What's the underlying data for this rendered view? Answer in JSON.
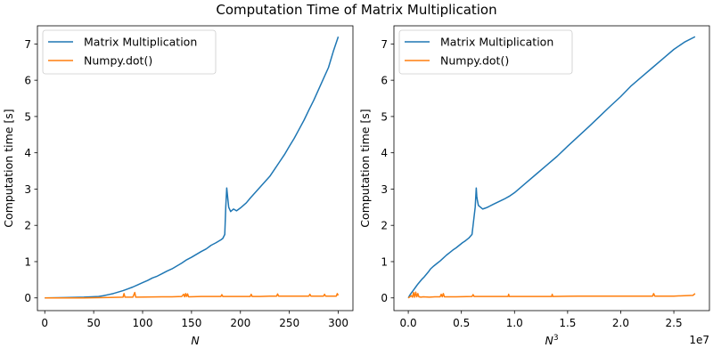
{
  "figure": {
    "title": "Computation Time of Matrix Multiplication"
  },
  "chart_data": [
    {
      "type": "line",
      "xlabel": "N",
      "ylabel": "Computation time [s]",
      "xlim": [
        -7.5,
        315
      ],
      "ylim": [
        -0.35,
        7.5
      ],
      "xticks": [
        0,
        50,
        100,
        150,
        200,
        250,
        300
      ],
      "yticks": [
        0,
        1,
        2,
        3,
        4,
        5,
        6,
        7
      ],
      "offset_text": "",
      "legend": "upper left",
      "grid": false,
      "series": [
        {
          "name": "Matrix Multiplication",
          "color": "#1f77b4",
          "x": [
            0,
            20,
            40,
            55,
            60,
            65,
            70,
            75,
            80,
            85,
            90,
            95,
            100,
            105,
            110,
            115,
            120,
            125,
            130,
            135,
            140,
            145,
            150,
            155,
            160,
            165,
            170,
            175,
            180,
            182,
            184,
            185,
            186,
            188,
            190,
            193,
            196,
            200,
            203,
            206,
            210,
            215,
            220,
            225,
            230,
            235,
            240,
            245,
            250,
            255,
            260,
            265,
            270,
            275,
            280,
            285,
            290,
            295,
            300
          ],
          "values": [
            0.0,
            0.01,
            0.02,
            0.04,
            0.06,
            0.09,
            0.12,
            0.16,
            0.2,
            0.25,
            0.3,
            0.36,
            0.42,
            0.48,
            0.55,
            0.6,
            0.67,
            0.74,
            0.8,
            0.88,
            0.96,
            1.05,
            1.12,
            1.2,
            1.28,
            1.35,
            1.45,
            1.52,
            1.6,
            1.64,
            1.75,
            2.5,
            3.03,
            2.5,
            2.38,
            2.45,
            2.4,
            2.48,
            2.55,
            2.62,
            2.75,
            2.9,
            3.05,
            3.2,
            3.35,
            3.55,
            3.75,
            3.95,
            4.18,
            4.4,
            4.65,
            4.9,
            5.18,
            5.45,
            5.75,
            6.05,
            6.35,
            6.8,
            7.2
          ]
        },
        {
          "name": "Numpy.dot()",
          "color": "#ff7f0e",
          "x": [
            0,
            40,
            60,
            80,
            81,
            82,
            90,
            92,
            93,
            94,
            120,
            130,
            140,
            142,
            143,
            144,
            145,
            146,
            147,
            148,
            160,
            180,
            181,
            182,
            200,
            210,
            211,
            212,
            220,
            230,
            237,
            238,
            239,
            250,
            270,
            271,
            272,
            285,
            286,
            287,
            295,
            298,
            299,
            300
          ],
          "values": [
            0.0,
            0.0,
            0.01,
            0.02,
            0.12,
            0.02,
            0.02,
            0.15,
            0.02,
            0.02,
            0.03,
            0.03,
            0.04,
            0.1,
            0.03,
            0.12,
            0.04,
            0.11,
            0.03,
            0.03,
            0.04,
            0.04,
            0.09,
            0.04,
            0.04,
            0.04,
            0.1,
            0.04,
            0.04,
            0.05,
            0.05,
            0.11,
            0.05,
            0.05,
            0.05,
            0.1,
            0.05,
            0.05,
            0.1,
            0.05,
            0.05,
            0.05,
            0.12,
            0.07
          ]
        }
      ]
    },
    {
      "type": "line",
      "xlabel": "N^3",
      "ylabel": "Computation time [s]",
      "xlim": [
        -1.35,
        28.35
      ],
      "ylim": [
        -0.35,
        7.5
      ],
      "xticks": [
        0.0,
        5.0,
        10.0,
        15.0,
        20.0,
        25.0
      ],
      "xtick_labels": [
        "0.0",
        "0.5",
        "1.0",
        "1.5",
        "2.0",
        "2.5"
      ],
      "yticks": [
        0,
        1,
        2,
        3,
        4,
        5,
        6,
        7
      ],
      "offset_text": "1e7",
      "legend": "upper left",
      "grid": false,
      "series": [
        {
          "name": "Matrix Multiplication",
          "color": "#1f77b4",
          "x": [
            0.0,
            0.1,
            0.2,
            0.35,
            0.5,
            0.7,
            0.9,
            1.1,
            1.3,
            1.5,
            1.7,
            1.9,
            2.1,
            2.4,
            2.7,
            3.0,
            3.3,
            3.6,
            3.9,
            4.2,
            4.5,
            4.8,
            5.1,
            5.4,
            5.7,
            6.0,
            6.1,
            6.3,
            6.4,
            6.45,
            6.5,
            6.6,
            6.8,
            7.0,
            7.3,
            7.6,
            8.0,
            8.5,
            9.0,
            9.5,
            10.0,
            11.0,
            12.0,
            13.0,
            14.0,
            15.0,
            16.0,
            17.0,
            18.0,
            19.0,
            20.0,
            21.0,
            22.0,
            23.0,
            24.0,
            25.0,
            26.0,
            27.0
          ],
          "values": [
            0.0,
            0.05,
            0.1,
            0.16,
            0.22,
            0.3,
            0.38,
            0.45,
            0.52,
            0.58,
            0.65,
            0.72,
            0.8,
            0.88,
            0.95,
            1.02,
            1.1,
            1.18,
            1.25,
            1.32,
            1.38,
            1.45,
            1.52,
            1.58,
            1.65,
            1.75,
            2.0,
            2.5,
            3.03,
            2.8,
            2.7,
            2.55,
            2.5,
            2.45,
            2.48,
            2.52,
            2.58,
            2.65,
            2.72,
            2.8,
            2.9,
            3.15,
            3.4,
            3.65,
            3.9,
            4.18,
            4.45,
            4.72,
            5.0,
            5.28,
            5.55,
            5.85,
            6.1,
            6.35,
            6.6,
            6.85,
            7.05,
            7.2
          ]
        },
        {
          "name": "Numpy.dot()",
          "color": "#ff7f0e",
          "x": [
            0.0,
            0.3,
            0.4,
            0.5,
            0.6,
            0.7,
            0.8,
            0.9,
            1.0,
            1.2,
            1.4,
            2.0,
            2.5,
            3.0,
            3.1,
            3.2,
            3.3,
            3.4,
            4.5,
            6.0,
            6.1,
            6.2,
            8.0,
            9.4,
            9.45,
            9.5,
            11.0,
            13.5,
            13.55,
            13.6,
            16.0,
            20.0,
            23.0,
            23.1,
            23.2,
            25.0,
            26.8,
            27.0
          ],
          "values": [
            0.0,
            0.06,
            0.02,
            0.15,
            0.02,
            0.16,
            0.03,
            0.12,
            0.03,
            0.02,
            0.03,
            0.02,
            0.03,
            0.03,
            0.1,
            0.03,
            0.12,
            0.03,
            0.03,
            0.04,
            0.09,
            0.04,
            0.04,
            0.04,
            0.1,
            0.04,
            0.04,
            0.04,
            0.1,
            0.04,
            0.05,
            0.05,
            0.05,
            0.12,
            0.05,
            0.05,
            0.07,
            0.12
          ]
        }
      ]
    }
  ]
}
